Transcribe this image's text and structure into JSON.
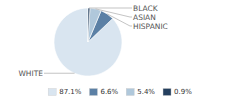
{
  "chart_data": {
    "type": "pie",
    "categories": [
      "WHITE",
      "HISPANIC",
      "ASIAN",
      "BLACK"
    ],
    "values": [
      87.1,
      6.6,
      5.4,
      0.9
    ],
    "value_labels": [
      "87.1%",
      "6.6%",
      "5.4%",
      "0.9%"
    ],
    "colors": [
      "#d9e5f0",
      "#5b80a5",
      "#b0c8db",
      "#243f5e"
    ],
    "legend": "bottom"
  }
}
